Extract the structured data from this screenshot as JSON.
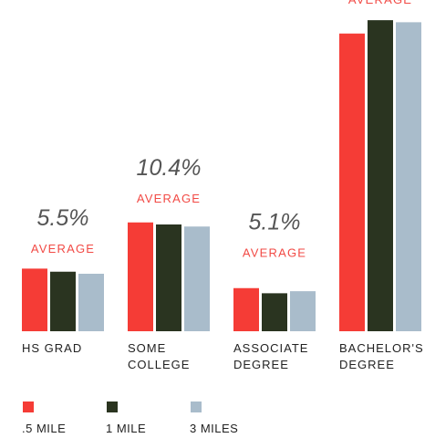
{
  "chart_data": {
    "type": "bar",
    "categories": [
      "HS GRAD",
      "SOME COLLEGE",
      "ASSOCIATE DEGREE",
      "BACHELOR'S DEGREE"
    ],
    "series": [
      {
        "name": ".5 MILE",
        "color": "#f53c36",
        "values": [
          6.1,
          10.6,
          4.2,
          29.0
        ]
      },
      {
        "name": "1 MILE",
        "color": "#2a3420",
        "values": [
          5.8,
          10.4,
          3.7,
          30.3
        ]
      },
      {
        "name": "3 MILES",
        "color": "#a9bccb",
        "values": [
          5.6,
          10.2,
          3.9,
          30.1
        ]
      }
    ],
    "averages": [
      5.5,
      10.4,
      5.1,
      null
    ],
    "average_labels": [
      "5.5%",
      "10.4%",
      "5.1%",
      null
    ],
    "average_caption": "AVERAGE"
  }
}
